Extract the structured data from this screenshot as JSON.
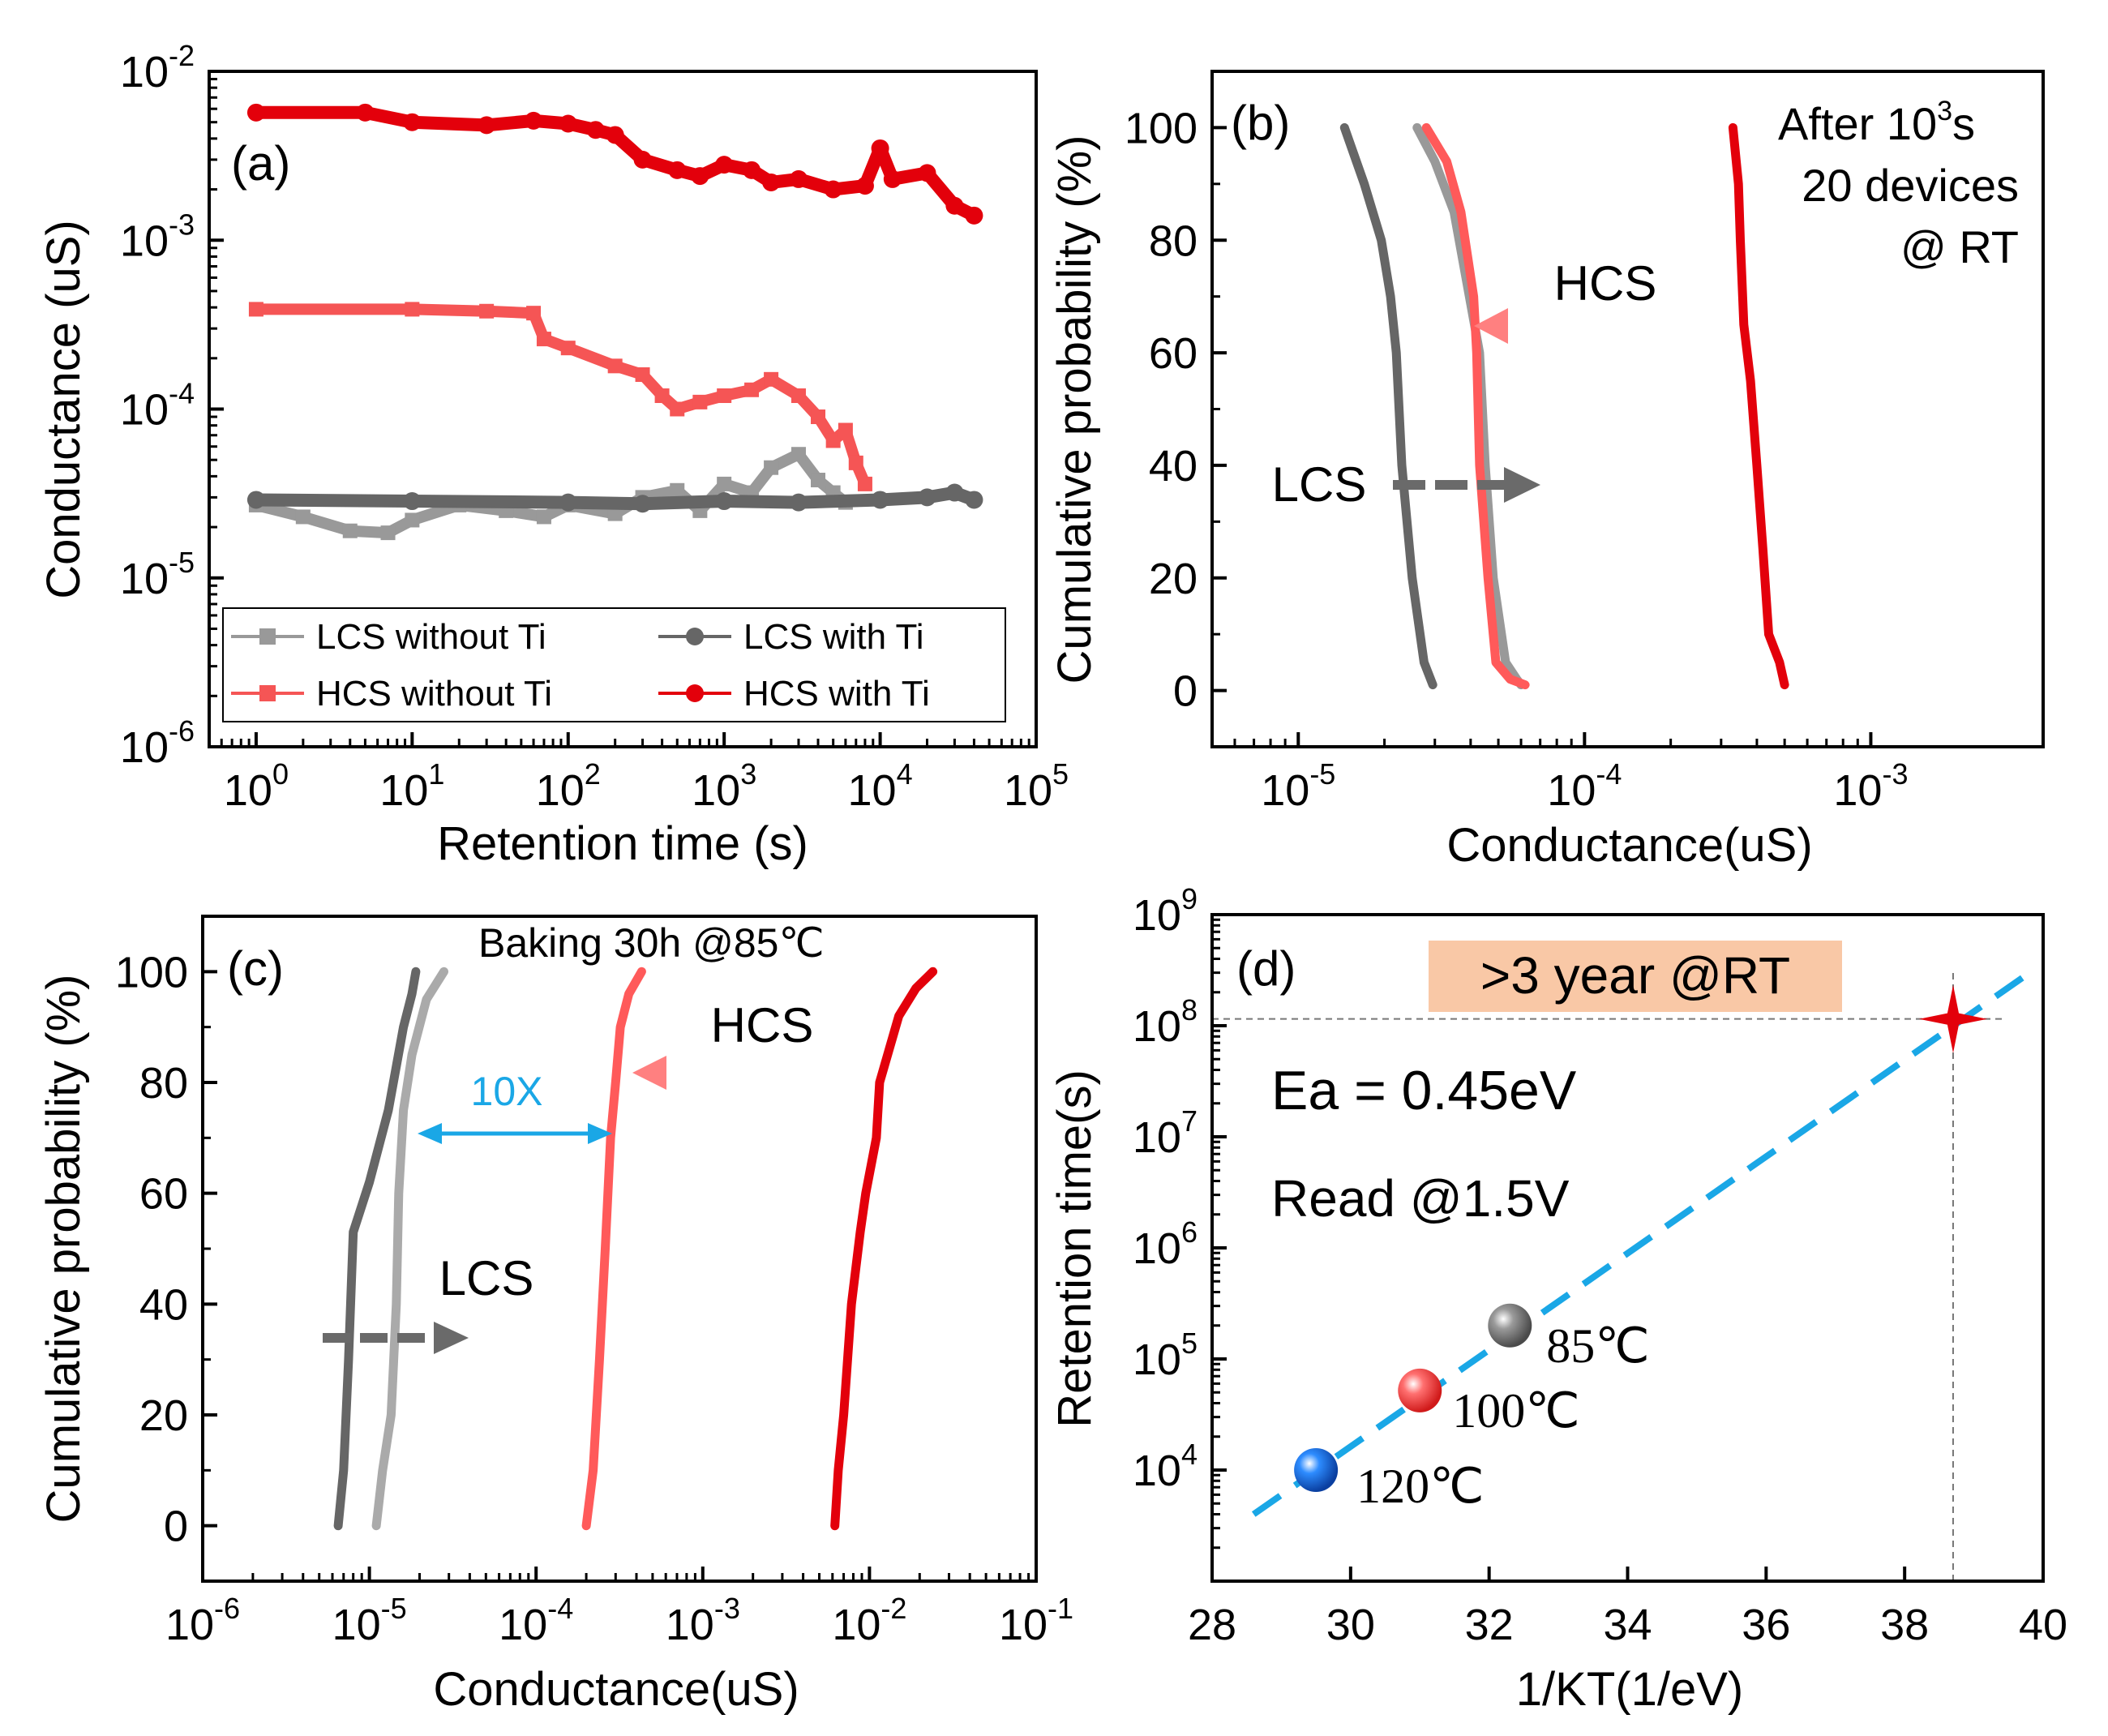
{
  "chart_data": [
    {
      "panel": "(a)",
      "type": "line",
      "xscale": "log",
      "yscale": "log",
      "xlabel": "Retention time (s)",
      "ylabel": "Conductance (uS)",
      "xlim": [
        0.5,
        100000
      ],
      "ylim": [
        1e-06,
        0.01
      ],
      "xticks": [
        1,
        10,
        100,
        1000,
        10000,
        100000
      ],
      "xtick_labels": [
        {
          "b": "10",
          "e": "0"
        },
        {
          "b": "10",
          "e": "1"
        },
        {
          "b": "10",
          "e": "2"
        },
        {
          "b": "10",
          "e": "3"
        },
        {
          "b": "10",
          "e": "4"
        },
        {
          "b": "10",
          "e": "5"
        }
      ],
      "yticks": [
        1e-06,
        1e-05,
        0.0001,
        0.001,
        0.01
      ],
      "ytick_labels": [
        {
          "b": "10",
          "e": "-6"
        },
        {
          "b": "10",
          "e": "-5"
        },
        {
          "b": "10",
          "e": "-4"
        },
        {
          "b": "10",
          "e": "-3"
        },
        {
          "b": "10",
          "e": "-2"
        }
      ],
      "legend_position": "bottom",
      "series": [
        {
          "name": "LCS without Ti",
          "color": "#999999",
          "marker": "square",
          "points": [
            [
              1,
              2.7e-05
            ],
            [
              2,
              2.3e-05
            ],
            [
              4,
              1.9e-05
            ],
            [
              7,
              1.85e-05
            ],
            [
              10,
              2.2e-05
            ],
            [
              20,
              2.7e-05
            ],
            [
              40,
              2.5e-05
            ],
            [
              70,
              2.3e-05
            ],
            [
              100,
              2.7e-05
            ],
            [
              200,
              2.4e-05
            ],
            [
              300,
              3e-05
            ],
            [
              500,
              3.3e-05
            ],
            [
              700,
              2.5e-05
            ],
            [
              1000,
              3.6e-05
            ],
            [
              1500,
              3.2e-05
            ],
            [
              2000,
              4.5e-05
            ],
            [
              3000,
              5.4e-05
            ],
            [
              4000,
              3.8e-05
            ],
            [
              5000,
              3.2e-05
            ],
            [
              6000,
              2.8e-05
            ]
          ]
        },
        {
          "name": "HCS without Ti",
          "color": "#f55555",
          "marker": "square",
          "points": [
            [
              1,
              0.00039
            ],
            [
              10,
              0.00039
            ],
            [
              30,
              0.00038
            ],
            [
              60,
              0.00037
            ],
            [
              70,
              0.00026
            ],
            [
              100,
              0.00023
            ],
            [
              200,
              0.00018
            ],
            [
              300,
              0.00016
            ],
            [
              400,
              0.00012
            ],
            [
              500,
              0.0001
            ],
            [
              700,
              0.00011
            ],
            [
              1000,
              0.00012
            ],
            [
              1500,
              0.00013
            ],
            [
              2000,
              0.00015
            ],
            [
              3000,
              0.00012
            ],
            [
              4000,
              9e-05
            ],
            [
              5000,
              6.5e-05
            ],
            [
              6000,
              7.5e-05
            ],
            [
              7000,
              4.8e-05
            ],
            [
              8000,
              3.6e-05
            ]
          ]
        },
        {
          "name": "LCS with Ti",
          "color": "#666666",
          "marker": "circle",
          "points": [
            [
              1,
              2.9e-05
            ],
            [
              10,
              2.85e-05
            ],
            [
              100,
              2.8e-05
            ],
            [
              300,
              2.75e-05
            ],
            [
              1000,
              2.85e-05
            ],
            [
              3000,
              2.8e-05
            ],
            [
              10000,
              2.9e-05
            ],
            [
              20000,
              3e-05
            ],
            [
              30000,
              3.2e-05
            ],
            [
              40000,
              2.9e-05
            ]
          ]
        },
        {
          "name": "HCS with Ti",
          "color": "#e3000b",
          "marker": "circle",
          "points": [
            [
              1,
              0.0057
            ],
            [
              5,
              0.0057
            ],
            [
              10,
              0.005
            ],
            [
              30,
              0.0048
            ],
            [
              60,
              0.0051
            ],
            [
              100,
              0.0049
            ],
            [
              150,
              0.0045
            ],
            [
              200,
              0.0042
            ],
            [
              300,
              0.003
            ],
            [
              500,
              0.0026
            ],
            [
              700,
              0.0024
            ],
            [
              1000,
              0.0028
            ],
            [
              1500,
              0.0026
            ],
            [
              2000,
              0.0022
            ],
            [
              3000,
              0.0023
            ],
            [
              5000,
              0.002
            ],
            [
              8000,
              0.0021
            ],
            [
              10000,
              0.0035
            ],
            [
              12000,
              0.0023
            ],
            [
              20000,
              0.0025
            ],
            [
              30000,
              0.0016
            ],
            [
              40000,
              0.0014
            ]
          ]
        }
      ],
      "annotations": [
        "(a)"
      ]
    },
    {
      "panel": "(b)",
      "type": "line",
      "xscale": "log",
      "xlabel": "Conductance(uS)",
      "ylabel": "Cumulative probability (%)",
      "xlim": [
        5e-06,
        0.004
      ],
      "ylim": [
        -10,
        110
      ],
      "xticks": [
        1e-05,
        0.0001,
        0.001
      ],
      "xtick_labels": [
        {
          "b": "10",
          "e": "-5"
        },
        {
          "b": "10",
          "e": "-4"
        },
        {
          "b": "10",
          "e": "-3"
        }
      ],
      "yticks": [
        0,
        20,
        40,
        60,
        80,
        100
      ],
      "series": [
        {
          "color": "#666666",
          "points": [
            [
              1.45e-05,
              100
            ],
            [
              1.7e-05,
              90
            ],
            [
              1.95e-05,
              80
            ],
            [
              2.1e-05,
              70
            ],
            [
              2.2e-05,
              60
            ],
            [
              2.3e-05,
              40
            ],
            [
              2.5e-05,
              20
            ],
            [
              2.75e-05,
              5
            ],
            [
              2.95e-05,
              1
            ]
          ]
        },
        {
          "color": "#999999",
          "points": [
            [
              2.6e-05,
              100
            ],
            [
              3e-05,
              94
            ],
            [
              3.5e-05,
              85
            ],
            [
              3.8e-05,
              75
            ],
            [
              4.3e-05,
              60
            ],
            [
              4.5e-05,
              40
            ],
            [
              4.8e-05,
              20
            ],
            [
              5.3e-05,
              5
            ],
            [
              5.8e-05,
              2
            ],
            [
              6e-05,
              1
            ]
          ]
        },
        {
          "color": "#ff5a5a",
          "points": [
            [
              2.8e-05,
              100
            ],
            [
              3.3e-05,
              94
            ],
            [
              3.7e-05,
              85
            ],
            [
              4.1e-05,
              70
            ],
            [
              4.2e-05,
              60
            ],
            [
              4.3e-05,
              40
            ],
            [
              4.6e-05,
              20
            ],
            [
              4.9e-05,
              5
            ],
            [
              5.5e-05,
              2
            ],
            [
              6.2e-05,
              1
            ]
          ]
        },
        {
          "color": "#e3000b",
          "points": [
            [
              0.00033,
              100
            ],
            [
              0.000345,
              90
            ],
            [
              0.00035,
              80
            ],
            [
              0.00036,
              65
            ],
            [
              0.00038,
              55
            ],
            [
              0.0004,
              40
            ],
            [
              0.00042,
              25
            ],
            [
              0.00044,
              10
            ],
            [
              0.00048,
              5
            ],
            [
              0.0005,
              1
            ]
          ]
        }
      ],
      "annotations": [
        "(b)",
        "After 10",
        "3",
        "s",
        "20 devices",
        "@ RT",
        "HCS",
        "LCS"
      ]
    },
    {
      "panel": "(c)",
      "type": "line",
      "xscale": "log",
      "xlabel": "Conductance(uS)",
      "ylabel": "Cumulative probability (%)",
      "xlim": [
        1e-06,
        0.1
      ],
      "ylim": [
        -10,
        110
      ],
      "xticks": [
        1e-06,
        1e-05,
        0.0001,
        0.001,
        0.01,
        0.1
      ],
      "xtick_labels": [
        {
          "b": "10",
          "e": "-6"
        },
        {
          "b": "10",
          "e": "-5"
        },
        {
          "b": "10",
          "e": "-4"
        },
        {
          "b": "10",
          "e": "-3"
        },
        {
          "b": "10",
          "e": "-2"
        },
        {
          "b": "10",
          "e": "-1"
        }
      ],
      "yticks": [
        0,
        20,
        40,
        60,
        80,
        100
      ],
      "series": [
        {
          "color": "#666666",
          "points": [
            [
              6.5e-06,
              0
            ],
            [
              7e-06,
              10
            ],
            [
              7.5e-06,
              30
            ],
            [
              8e-06,
              53
            ],
            [
              1e-05,
              62
            ],
            [
              1.3e-05,
              75
            ],
            [
              1.6e-05,
              90
            ],
            [
              1.8e-05,
              96
            ],
            [
              1.9e-05,
              100
            ]
          ]
        },
        {
          "color": "#aaaaaa",
          "points": [
            [
              1.1e-05,
              0
            ],
            [
              1.2e-05,
              10
            ],
            [
              1.35e-05,
              20
            ],
            [
              1.45e-05,
              40
            ],
            [
              1.5e-05,
              60
            ],
            [
              1.6e-05,
              75
            ],
            [
              1.8e-05,
              85
            ],
            [
              2.2e-05,
              95
            ],
            [
              2.8e-05,
              100
            ]
          ]
        },
        {
          "color": "#ff5a5a",
          "points": [
            [
              0.0002,
              0
            ],
            [
              0.00022,
              10
            ],
            [
              0.00024,
              30
            ],
            [
              0.00026,
              50
            ],
            [
              0.00028,
              70
            ],
            [
              0.0003,
              80
            ],
            [
              0.00032,
              90
            ],
            [
              0.00036,
              96
            ],
            [
              0.00043,
              100
            ]
          ]
        },
        {
          "color": "#e3000b",
          "points": [
            [
              0.0062,
              0
            ],
            [
              0.0065,
              10
            ],
            [
              0.007,
              20
            ],
            [
              0.0078,
              40
            ],
            [
              0.0088,
              53
            ],
            [
              0.0095,
              60
            ],
            [
              0.011,
              70
            ],
            [
              0.0115,
              80
            ],
            [
              0.015,
              92
            ],
            [
              0.019,
              97
            ],
            [
              0.024,
              100
            ]
          ]
        }
      ],
      "annotations": [
        "(c)",
        "Baking 30h @85℃",
        "HCS",
        "LCS",
        "10X"
      ]
    },
    {
      "panel": "(d)",
      "type": "scatter",
      "yscale": "log",
      "xlabel": "1/KT(1/eV)",
      "ylabel": "Retention time(s)",
      "xlim": [
        28,
        40
      ],
      "ylim": [
        1000,
        1000000000
      ],
      "xticks": [
        28,
        30,
        32,
        34,
        36,
        38,
        40
      ],
      "yticks": [
        10000,
        100000,
        1000000,
        10000000,
        100000000,
        1000000000
      ],
      "ytick_labels": [
        {
          "b": "10",
          "e": "4"
        },
        {
          "b": "10",
          "e": "5"
        },
        {
          "b": "10",
          "e": "6"
        },
        {
          "b": "10",
          "e": "7"
        },
        {
          "b": "10",
          "e": "8"
        },
        {
          "b": "10",
          "e": "9"
        }
      ],
      "points": [
        {
          "x": 32.3,
          "y": 200000,
          "label": "85℃",
          "color": "#707070"
        },
        {
          "x": 31.0,
          "y": 52000,
          "label": "100℃",
          "color": "#f04040"
        },
        {
          "x": 29.5,
          "y": 10000,
          "label": "120℃",
          "color": "#1a6fe0"
        }
      ],
      "fit_line": {
        "color": "#1aa7e6",
        "x": [
          28.6,
          39.9
        ],
        "y": [
          4000,
          330000000
        ]
      },
      "star": {
        "x": 38.7,
        "y": 115000000,
        "color": "#e3000b"
      },
      "annotations": [
        "(d)",
        ">3 year @RT",
        "Ea = 0.45eV",
        "Read @1.5V"
      ],
      "highlight_color": "#f9c8a6"
    }
  ]
}
